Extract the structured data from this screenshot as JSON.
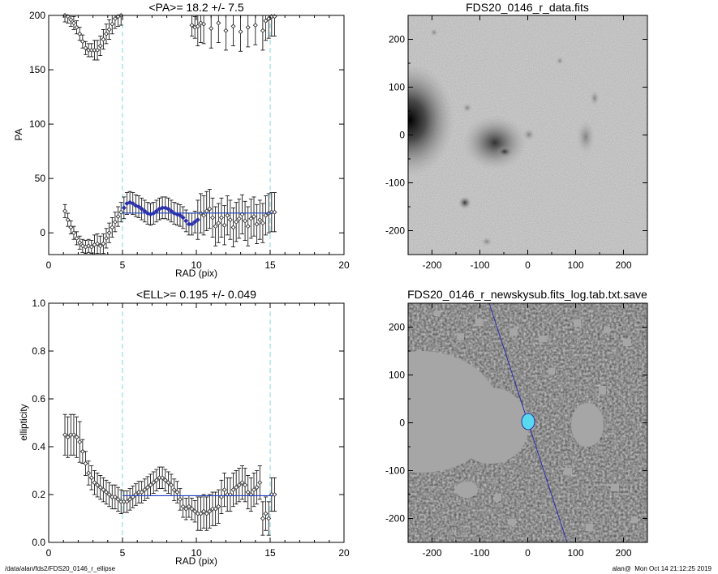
{
  "chart_data": [
    {
      "type": "scatter",
      "title": "<PA>=  18.2 +/-   7.5",
      "xlabel": "RAD (pix)",
      "ylabel": "PA",
      "xlim": [
        0,
        20
      ],
      "ylim": [
        -20,
        200
      ],
      "x_ticks": [
        0,
        5,
        10,
        15,
        20
      ],
      "y_ticks": [
        0,
        50,
        100,
        150,
        200
      ],
      "reference_lines": {
        "vertical_x": [
          5,
          15
        ],
        "horizontal": {
          "y": 18.2,
          "x_range": [
            5,
            15.2
          ]
        }
      },
      "colors": {
        "points": "#333333",
        "fit_points": "#2b2fa8",
        "fit_line": "#1f3fbf",
        "ref_lines": "#7fd8e0"
      },
      "series": [
        {
          "x": [
            1.1,
            1.3,
            1.5,
            1.7,
            1.9,
            2.1,
            2.3,
            2.5,
            2.7,
            2.9,
            3.1,
            3.3,
            3.5,
            3.7,
            3.9,
            4.1,
            4.3,
            4.5,
            4.7,
            4.9
          ],
          "y": [
            20,
            12,
            5,
            0,
            -5,
            -9,
            -12,
            -13,
            -12,
            -13,
            -11,
            -10,
            -12,
            -10,
            -5,
            0,
            5,
            10,
            15,
            19
          ]
        },
        {
          "x": [
            1.1,
            1.3,
            1.5,
            1.7,
            1.9,
            2.1,
            2.3,
            2.5,
            2.7,
            2.9,
            3.1,
            3.3,
            3.5,
            3.7,
            3.9,
            4.1,
            4.3,
            4.5,
            4.7,
            4.9
          ],
          "y": [
            200,
            199,
            196,
            193,
            189,
            183,
            176,
            170,
            168,
            168,
            168,
            168,
            172,
            178,
            183,
            187,
            192,
            197,
            199,
            200
          ]
        },
        {
          "x": [
            5.1,
            5.3,
            5.5,
            5.7,
            5.9,
            6.1,
            6.3,
            6.5,
            6.7,
            6.9,
            7.1,
            7.3,
            7.5,
            7.7,
            7.9,
            8.1,
            8.3,
            8.5,
            8.7,
            8.9,
            9.1,
            9.3,
            9.5,
            9.7,
            9.9,
            10.1
          ],
          "y": [
            23,
            27,
            28,
            27,
            25,
            24,
            22,
            20,
            18,
            17,
            18,
            20,
            22,
            23,
            23,
            22,
            20,
            18,
            17,
            16,
            14,
            11,
            8,
            8,
            10,
            12
          ]
        },
        {
          "x": [
            10.3,
            10.5,
            10.7,
            10.9,
            11.1,
            11.3,
            11.5,
            11.7,
            11.9,
            12.1,
            12.3,
            12.5,
            12.7,
            12.9,
            13.1,
            13.3,
            13.5,
            13.7,
            13.9,
            14.1,
            14.3,
            14.5,
            14.7,
            14.9,
            15.1,
            15.3
          ],
          "y": [
            18,
            16,
            20,
            22,
            14,
            6,
            9,
            14,
            7,
            16,
            12,
            5,
            10,
            13,
            17,
            11,
            6,
            13,
            15,
            8,
            12,
            9,
            16,
            18,
            19,
            19
          ]
        },
        {
          "x": [
            9.7,
            9.9,
            10.1,
            10.3,
            10.5,
            11.0,
            11.5,
            12.0,
            12.5,
            13.0,
            13.5,
            14.0,
            14.5,
            14.7,
            14.9,
            15.1,
            15.3
          ],
          "y": [
            191,
            189,
            190,
            193,
            192,
            188,
            193,
            186,
            190,
            185,
            189,
            191,
            186,
            195,
            197,
            199,
            199
          ]
        }
      ]
    },
    {
      "type": "scatter",
      "title": "<ELL>= 0.195 +/-  0.049",
      "xlabel": "RAD (pix)",
      "ylabel": "ellipticity",
      "xlim": [
        0,
        20
      ],
      "ylim": [
        0.0,
        1.0
      ],
      "x_ticks": [
        0,
        5,
        10,
        15,
        20
      ],
      "y_ticks": [
        "0.0",
        "0.2",
        "0.4",
        "0.6",
        "0.8",
        "1.0"
      ],
      "reference_lines": {
        "vertical_x": [
          5,
          15
        ],
        "horizontal": {
          "y": 0.195,
          "x_range": [
            5,
            15.2
          ]
        }
      },
      "colors": {
        "points": "#333333",
        "fit_line": "#1f3fbf",
        "ref_lines": "#7fd8e0"
      },
      "series": [
        {
          "x": [
            1.1,
            1.3,
            1.5,
            1.7,
            1.9,
            2.1,
            2.3,
            2.5,
            2.7,
            2.9,
            3.1,
            3.3,
            3.5,
            3.7,
            3.9,
            4.1,
            4.3,
            4.5,
            4.7,
            4.9,
            5.1,
            5.3,
            5.5,
            5.7,
            5.9,
            6.1,
            6.3,
            6.5,
            6.7,
            6.9,
            7.1,
            7.3,
            7.5,
            7.7,
            7.9,
            8.1,
            8.3,
            8.5,
            8.7,
            8.9,
            9.1,
            9.3,
            9.5,
            9.7,
            9.9,
            10.1,
            10.3,
            10.5,
            10.7,
            10.9,
            11.1,
            11.3,
            11.5,
            11.7,
            11.9,
            12.1,
            12.3,
            12.5,
            12.7,
            12.9,
            13.1,
            13.3,
            13.5,
            13.7,
            13.9,
            14.1,
            14.3,
            14.5,
            14.7,
            14.9,
            15.1,
            15.3
          ],
          "y": [
            0.45,
            0.44,
            0.45,
            0.45,
            0.44,
            0.42,
            0.38,
            0.33,
            0.29,
            0.27,
            0.25,
            0.24,
            0.23,
            0.22,
            0.21,
            0.2,
            0.19,
            0.19,
            0.18,
            0.17,
            0.17,
            0.17,
            0.18,
            0.19,
            0.2,
            0.21,
            0.21,
            0.22,
            0.23,
            0.24,
            0.25,
            0.26,
            0.27,
            0.27,
            0.26,
            0.25,
            0.24,
            0.22,
            0.21,
            0.18,
            0.15,
            0.14,
            0.15,
            0.14,
            0.13,
            0.12,
            0.12,
            0.13,
            0.12,
            0.13,
            0.14,
            0.14,
            0.15,
            0.19,
            0.22,
            0.2,
            0.2,
            0.22,
            0.23,
            0.24,
            0.25,
            0.24,
            0.21,
            0.2,
            0.22,
            0.23,
            0.25,
            0.1,
            0.12,
            0.1,
            0.2,
            0.2
          ]
        }
      ]
    }
  ],
  "images": [
    {
      "title": "FDS20_0146_r_data.fits",
      "x_ticks": [
        -200,
        -100,
        0,
        100,
        200
      ],
      "y_ticks": [
        -200,
        -100,
        0,
        100,
        200
      ],
      "range": [
        -250,
        250
      ]
    },
    {
      "title": "FDS20_0146_r_newskysub.fits_log.tab.txt.save",
      "x_ticks": [
        -200,
        -100,
        0,
        100,
        200
      ],
      "y_ticks": [
        -200,
        -100,
        0,
        100,
        200
      ],
      "range": [
        -250,
        250
      ],
      "overlay_colors": {
        "ellipse": "#59d9f0",
        "line": "#2b2fa8"
      }
    }
  ],
  "footer": {
    "left": "/data/alan/fds2/FDS20_0146_r_ellipse",
    "right": "alan@  Mon Oct 14 21:12:25 2019"
  }
}
